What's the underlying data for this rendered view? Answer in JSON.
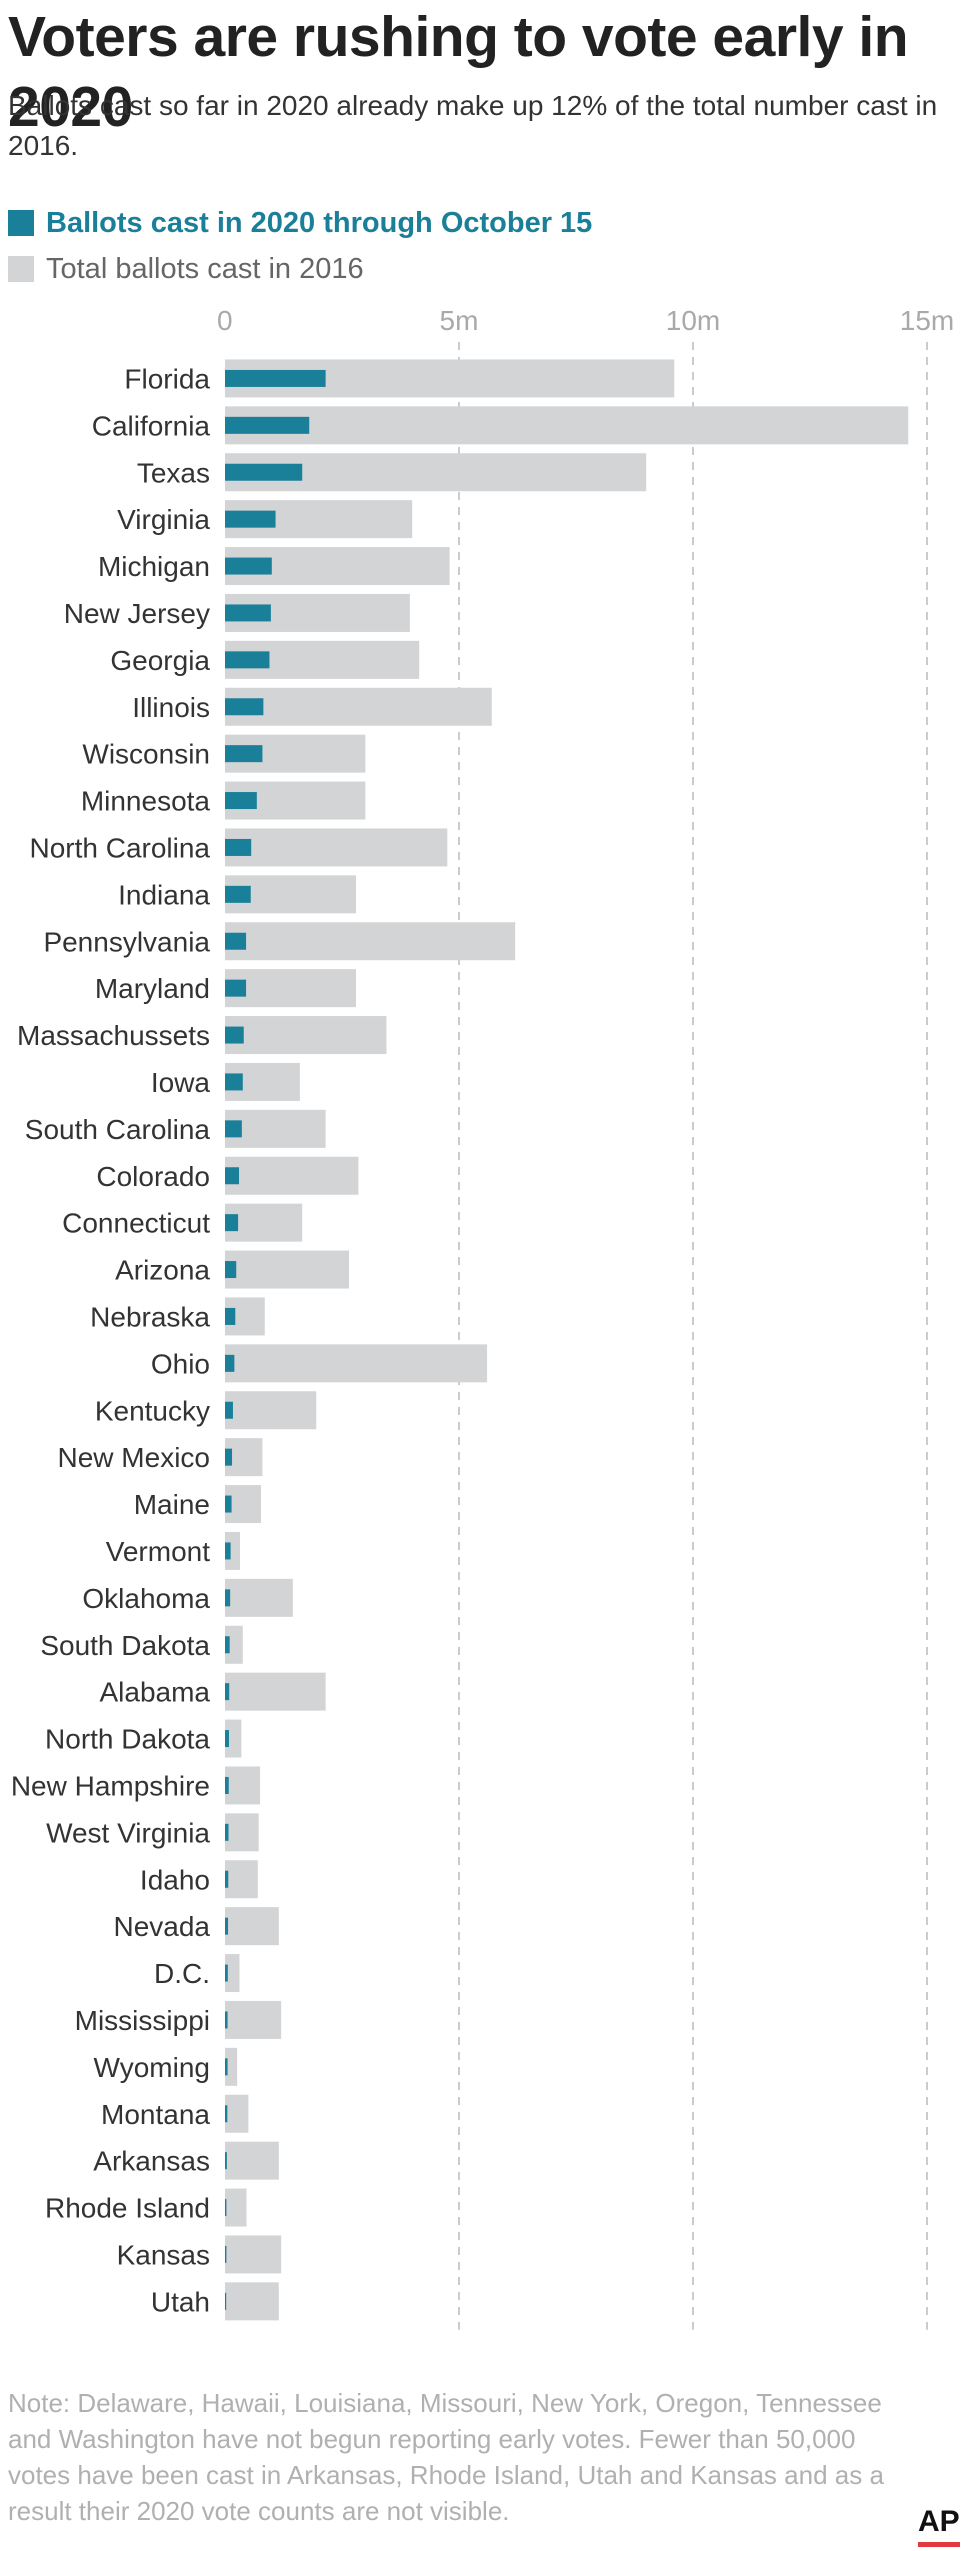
{
  "title": "Voters are rushing to vote early in 2020",
  "subtitle": "Ballots cast so far in 2020 already make up 12% of the total number cast in 2016.",
  "note": "Note: Delaware, Hawaii, Louisiana, Missouri, New York, Oregon, Tennessee and Washington have not begun reporting early votes. Fewer than 50,000 votes have been cast in Arkansas, Rhode Island, Utah and Kansas and as a result their 2020 vote counts are not visible.",
  "logo": "AP",
  "colors": {
    "ballots_2020": "#1a7f98",
    "total_2016": "#d3d4d6",
    "grid": "#cccccc"
  },
  "chart_data": {
    "type": "bar",
    "orientation": "horizontal",
    "xlim": [
      0,
      15000000
    ],
    "x_ticks": [
      0,
      5000000,
      10000000,
      15000000
    ],
    "x_tick_labels": [
      "0",
      "5m",
      "10m",
      "15m"
    ],
    "grid": true,
    "legend_position": "top-left",
    "categories": [
      "Florida",
      "California",
      "Texas",
      "Virginia",
      "Michigan",
      "New Jersey",
      "Georgia",
      "Illinois",
      "Wisconsin",
      "Minnesota",
      "North Carolina",
      "Indiana",
      "Pennsylvania",
      "Maryland",
      "Massachussets",
      "Iowa",
      "South Carolina",
      "Colorado",
      "Connecticut",
      "Arizona",
      "Nebraska",
      "Ohio",
      "Kentucky",
      "New Mexico",
      "Maine",
      "Vermont",
      "Oklahoma",
      "South Dakota",
      "Alabama",
      "North Dakota",
      "New Hampshire",
      "West Virginia",
      "Idaho",
      "Nevada",
      "D.C.",
      "Mississippi",
      "Wyoming",
      "Montana",
      "Arkansas",
      "Rhode Island",
      "Kansas",
      "Utah"
    ],
    "series": [
      {
        "name": "Ballots  cast in 2020 through October 15",
        "color": "#1a7f98",
        "values": [
          2150000,
          1800000,
          1650000,
          1080000,
          1000000,
          980000,
          950000,
          820000,
          800000,
          680000,
          560000,
          550000,
          450000,
          450000,
          400000,
          380000,
          360000,
          300000,
          280000,
          240000,
          220000,
          200000,
          170000,
          150000,
          140000,
          120000,
          110000,
          100000,
          90000,
          85000,
          80000,
          75000,
          70000,
          65000,
          60000,
          55000,
          55000,
          50000,
          40000,
          30000,
          30000,
          25000
        ]
      },
      {
        "name": "Total ballots cast in 2016",
        "color": "#d3d4d6",
        "values": [
          9600000,
          14600000,
          9000000,
          4000000,
          4800000,
          3950000,
          4150000,
          5700000,
          3000000,
          3000000,
          4750000,
          2800000,
          6200000,
          2800000,
          3450000,
          1600000,
          2150000,
          2850000,
          1650000,
          2650000,
          850000,
          5600000,
          1950000,
          800000,
          770000,
          320000,
          1450000,
          380000,
          2150000,
          350000,
          750000,
          720000,
          700000,
          1150000,
          310000,
          1200000,
          260000,
          500000,
          1150000,
          460000,
          1200000,
          1150000
        ]
      }
    ]
  }
}
